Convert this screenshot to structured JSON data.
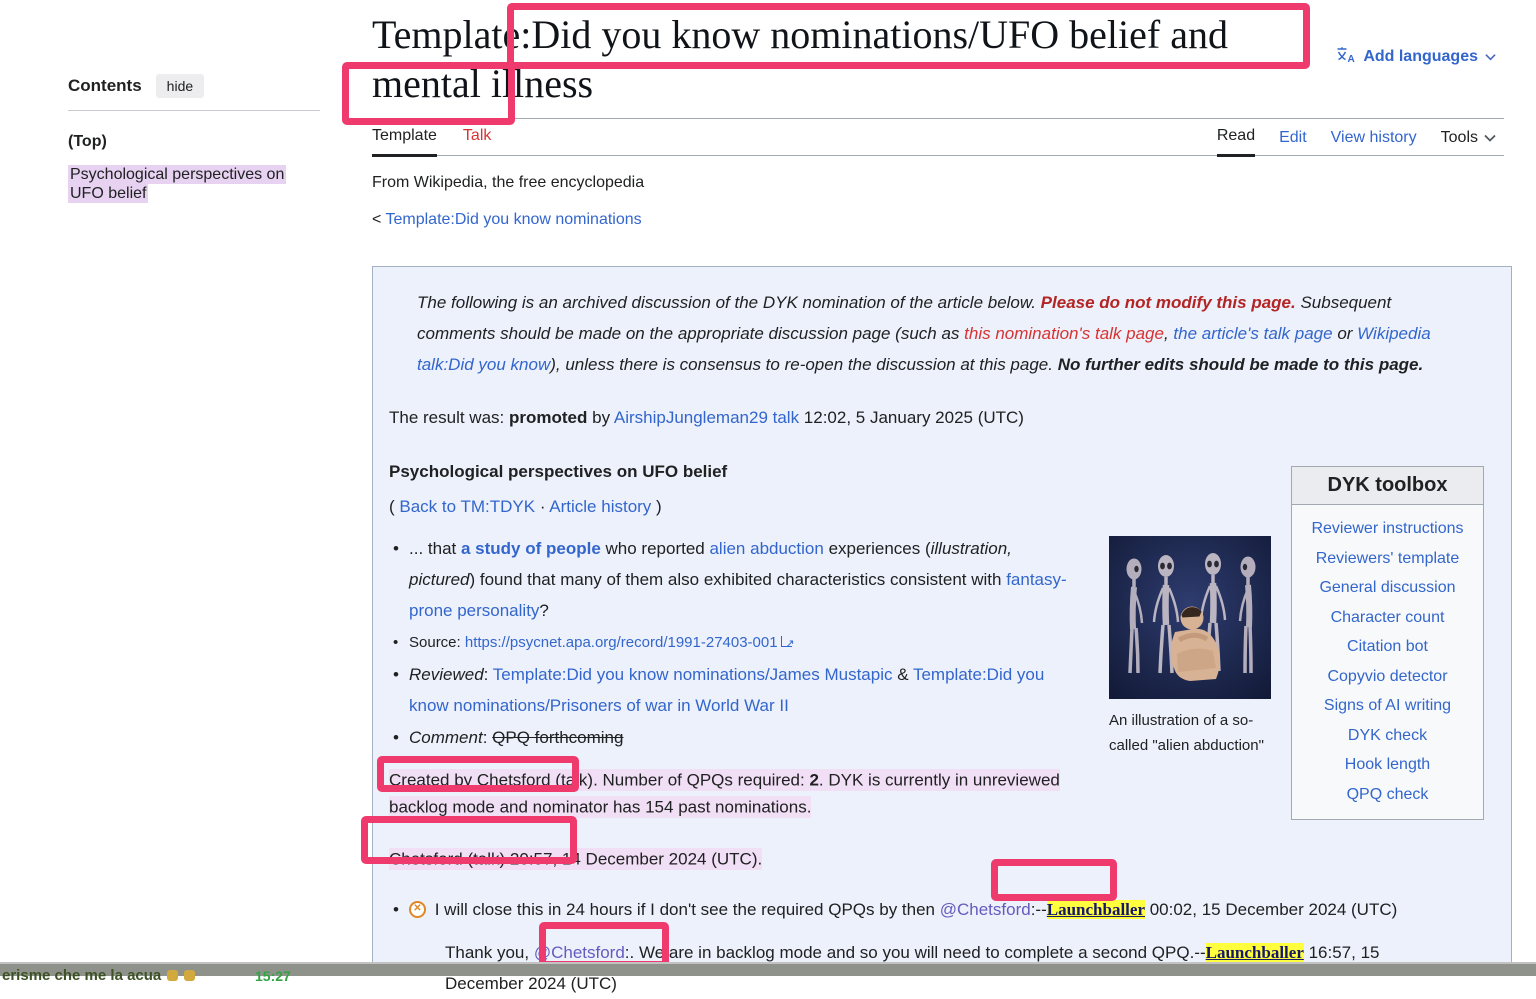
{
  "colors": {
    "annotation_pink": "#ee3a6d",
    "link_blue": "#3366cc",
    "redlink": "#d73333",
    "warning_red": "#b32424",
    "mention_purple": "#655bbf",
    "highlight_purple": "#f1dff5",
    "toc_highlight_purple": "#e7d2f1",
    "signature_yellow": "#ffff3e",
    "archive_box_bg": "#edf1fb"
  },
  "sidebar": {
    "contents_label": "Contents",
    "hide_label": "hide",
    "top_item": "(Top)",
    "highlighted_item": "Psychological perspectives on UFO belief"
  },
  "header": {
    "title": "Template:Did you know nominations/UFO belief and mental illness",
    "add_languages": "Add languages",
    "subtitle": "From Wikipedia, the free encyclopedia",
    "breadcrumb_prefix": "<",
    "breadcrumb_link": "Template:Did you know nominations"
  },
  "tabs": {
    "template": "Template",
    "talk": "Talk",
    "read": "Read",
    "edit": "Edit",
    "view_history": "View history",
    "tools": "Tools"
  },
  "discussion": {
    "notice": [
      {
        "t": "The following is an archived discussion of the DYK nomination of the article below. "
      },
      {
        "t": "Please do not modify this page.",
        "s": "redbold"
      },
      {
        "t": " Subsequent comments should be made on the appropriate discussion page (such as "
      },
      {
        "t": "this nomination's talk page",
        "s": "redlink",
        "i": true,
        "n": "nomination-talk-page-link"
      },
      {
        "t": ", "
      },
      {
        "t": "the article's talk page",
        "s": "link",
        "i": true,
        "n": "article-talk-page-link"
      },
      {
        "t": " or "
      },
      {
        "t": "Wikipedia talk:Did you know",
        "s": "link",
        "i": true,
        "n": "wikipedia-talk-dyk-link"
      },
      {
        "t": "), unless there is consensus to re-open the discussion at this page. "
      },
      {
        "t": "No further edits should be made to this page.",
        "s": "bold"
      }
    ],
    "result": [
      {
        "t": "The result was: "
      },
      {
        "t": "promoted",
        "s": "bold"
      },
      {
        "t": " by "
      },
      {
        "t": "AirshipJungleman29 talk",
        "s": "link",
        "i": true,
        "n": "promoter-signature-link"
      },
      {
        "t": " 12:02, 5 January 2025 (UTC)"
      }
    ],
    "article_heading": "Psychological perspectives on UFO belief",
    "nav": [
      {
        "t": "( "
      },
      {
        "t": "Back to TM:TDYK",
        "s": "link",
        "i": true,
        "n": "back-to-ttdyk-link"
      },
      {
        "t": " · "
      },
      {
        "t": "Article history",
        "s": "link",
        "i": true,
        "n": "article-history-link"
      },
      {
        "t": " )"
      }
    ],
    "hook": [
      {
        "t": "... that "
      },
      {
        "t": "a study of people",
        "s": "boldlink",
        "i": true,
        "n": "article-link"
      },
      {
        "t": " who reported "
      },
      {
        "t": "alien abduction",
        "s": "link",
        "i": true,
        "n": "alien-abduction-link"
      },
      {
        "t": " experiences ("
      },
      {
        "t": "illustration, pictured",
        "s": "italic"
      },
      {
        "t": ") found that many of them also exhibited characteristics consistent with "
      },
      {
        "t": "fantasy-prone personality",
        "s": "link",
        "i": true,
        "n": "fantasy-prone-personality-link"
      },
      {
        "t": "?"
      }
    ],
    "source": [
      {
        "t": "Source: "
      },
      {
        "t": "https://psycnet.apa.org/record/1991-27403-001",
        "s": "link",
        "i": true,
        "n": "source-url-link"
      },
      {
        "icon": "external-link",
        "i": true
      }
    ],
    "reviewed": [
      {
        "t": "Reviewed",
        "s": "italic"
      },
      {
        "t": ": "
      },
      {
        "t": "Template:Did you know nominations/James Mustapic",
        "s": "link",
        "i": true,
        "n": "reviewed-link-1"
      },
      {
        "t": " & "
      },
      {
        "t": "Template:Did you know nominations/Prisoners of war in World War II",
        "s": "link",
        "i": true,
        "n": "reviewed-link-2"
      }
    ],
    "comment": [
      {
        "t": "Comment",
        "s": "italic"
      },
      {
        "t": ": "
      },
      {
        "t": "QPQ forthcoming",
        "s": "strike"
      }
    ],
    "created": [
      {
        "t": "Created by Chetsford (talk). Number of QPQs required: "
      },
      {
        "t": "2",
        "s": "bold"
      },
      {
        "t": ". DYK is currently in unreviewed backlog mode and nominator has 154 past nominations."
      }
    ],
    "signature": "Chetsford (talk) 20:57, 14 December 2024 (UTC).",
    "comment1": [
      {
        "icon": "circle-x"
      },
      {
        "t": " I will close this in 24 hours if I don't see the required QPQs by then "
      },
      {
        "t": "@Chetsford",
        "s": "mention",
        "i": true,
        "n": "chetsford-mention-link"
      },
      {
        "t": ":--"
      },
      {
        "t": "Launchballer",
        "s": "sig",
        "i": true,
        "n": "launchballer-signature-link"
      },
      {
        "t": " 00:02, 15 December 2024 (UTC)"
      }
    ],
    "comment2": [
      {
        "t": "Thank you, "
      },
      {
        "t": "@Chetsford",
        "s": "mention",
        "i": true,
        "n": "chetsford-mention-link"
      },
      {
        "t": ":. We are in backlog mode and so you will need to complete a second QPQ.--"
      },
      {
        "t": "Launchballer",
        "s": "sig",
        "i": true,
        "n": "launchballer-signature-link"
      },
      {
        "t": " 16:57, 15 December 2024 (UTC)"
      }
    ]
  },
  "toolbox": {
    "title": "DYK toolbox",
    "links": [
      "Reviewer instructions",
      "Reviewers' template",
      "General discussion",
      "Character count",
      "Citation bot",
      "Copyvio detector",
      "Signs of AI writing",
      "DYK check",
      "Hook length",
      "QPQ check"
    ]
  },
  "image": {
    "caption": "An illustration of a so-called \"alien abduction\""
  },
  "taskbar": {
    "message": "erisme che me la acua",
    "emojis": "👍👍",
    "time": "15:27"
  }
}
